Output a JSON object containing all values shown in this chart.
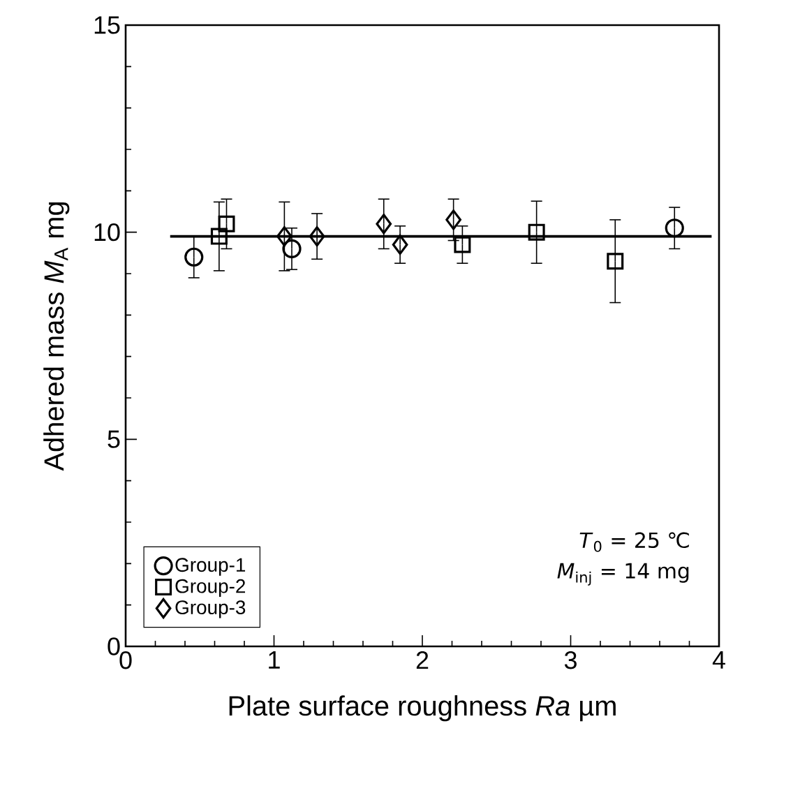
{
  "chart_data": {
    "type": "scatter",
    "xlabel": "Plate surface roughness  *Ra*  µm",
    "ylabel": "Adhered mass  *M*$_{A}$  mg",
    "xlim": [
      0,
      4
    ],
    "ylim": [
      0,
      15
    ],
    "xticks": [
      0,
      1,
      2,
      3,
      4
    ],
    "yticks": [
      0,
      5,
      10,
      15
    ],
    "legend": "bottom left",
    "annotations": [
      "*T*$_{0}$  = 25 ℃",
      "*M*$_{inj}$ = 14 mg"
    ],
    "series": [
      {
        "name": "Group-1",
        "color": "#000000",
        "marker": "circle",
        "x": [
          0.46,
          1.12,
          3.7
        ],
        "values": [
          9.4,
          9.6,
          10.1
        ],
        "errors": [
          0.5,
          0.5,
          0.5
        ]
      },
      {
        "name": "Group-2",
        "color": "#000000",
        "marker": "square",
        "x": [
          0.63,
          0.68,
          2.27,
          2.77,
          3.3
        ],
        "values": [
          9.9,
          10.2,
          9.7,
          10.0,
          9.3
        ],
        "errors": [
          0.83,
          0.6,
          0.45,
          0.75,
          1.0
        ]
      },
      {
        "name": "Group-3",
        "color": "#000000",
        "marker": "diamond",
        "x": [
          1.07,
          1.29,
          1.74,
          1.85,
          2.21
        ],
        "values": [
          9.9,
          9.9,
          10.2,
          9.7,
          10.3
        ],
        "errors": [
          0.83,
          0.55,
          0.6,
          0.45,
          0.5
        ]
      },
      {
        "type": "line",
        "color": "#000000",
        "marker": "none",
        "x": [
          0.3,
          3.95
        ],
        "values": [
          9.9,
          9.9
        ]
      }
    ]
  }
}
